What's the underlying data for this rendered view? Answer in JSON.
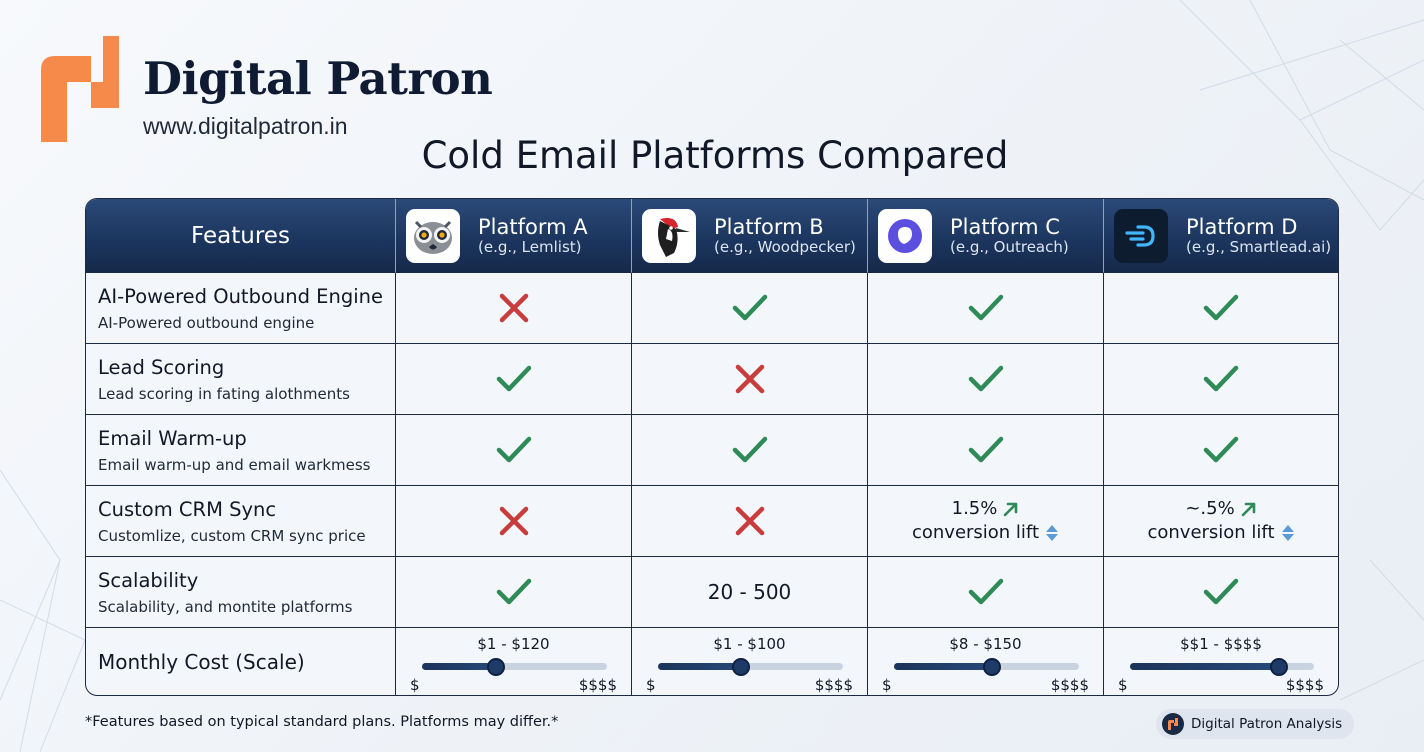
{
  "brand": {
    "name": "Digital Patron",
    "url": "www.digitalpatron.in",
    "accent": "#f58a4b"
  },
  "title": "Cold Email Platforms Compared",
  "table": {
    "features_header": "Features",
    "platforms": [
      {
        "name": "Platform A",
        "example": "(e.g., Lemlist)",
        "icon": "lemur-icon"
      },
      {
        "name": "Platform B",
        "example": "(e.g., Woodpecker)",
        "icon": "woodpecker-icon"
      },
      {
        "name": "Platform C",
        "example": "(e.g., Outreach)",
        "icon": "outreach-icon"
      },
      {
        "name": "Platform D",
        "example": "(e.g., Smartlead.ai)",
        "icon": "smartlead-icon"
      }
    ],
    "rows": [
      {
        "title": "AI-Powered Outbound Engine",
        "desc": "AI-Powered outbound engine",
        "values": [
          "cross",
          "check",
          "check",
          "check"
        ]
      },
      {
        "title": "Lead Scoring",
        "desc": "Lead scoring in fating alothments",
        "values": [
          "check",
          "cross",
          "check",
          "check"
        ]
      },
      {
        "title": "Email Warm-up",
        "desc": "Email warm-up and email warkmess",
        "values": [
          "check",
          "check",
          "check",
          "check"
        ]
      },
      {
        "title": "Custom CRM Sync",
        "desc": "Customlize, custom CRM sync price",
        "values": [
          "cross",
          "cross",
          "1.5%|conversion lift",
          "~.5%|conversion lift"
        ]
      },
      {
        "title": "Scalability",
        "desc": "Scalability, and montite platforms",
        "values": [
          "check",
          "20 - 500",
          "check",
          "check"
        ]
      }
    ],
    "cost": {
      "title": "Monthly Cost (Scale)",
      "low_label": "$",
      "high_label": "$$$$",
      "platforms": [
        {
          "range": "$1 - $120",
          "level": 0.4
        },
        {
          "range": "$1 - $100",
          "level": 0.45
        },
        {
          "range": "$8 - $150",
          "level": 0.53
        },
        {
          "range": "$$1 - $$$$",
          "level": 0.81
        }
      ]
    }
  },
  "footnote": "*Features based on typical standard plans. Platforms may differ.*",
  "badge": "Digital Patron Analysis",
  "colors": {
    "check": "#2e8b57",
    "cross": "#c83c3c",
    "header": "#1c365f",
    "trend_up": "#2e8b57",
    "updown": "#5b9bd5"
  }
}
